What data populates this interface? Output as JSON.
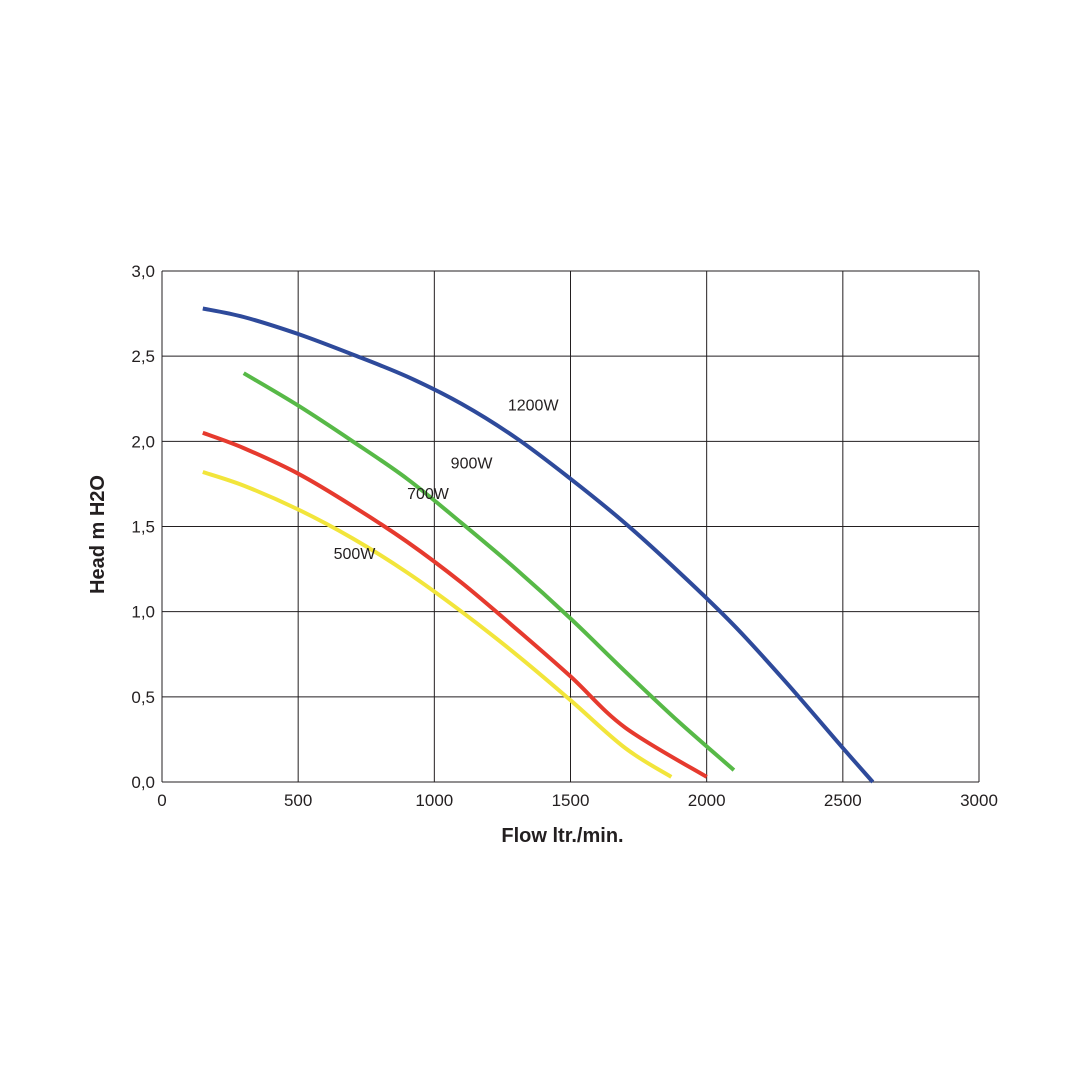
{
  "chart_data": {
    "type": "line",
    "xlabel": "Flow ltr./min.",
    "ylabel": "Head m H2O",
    "xlim": [
      0,
      3000
    ],
    "ylim": [
      0,
      3
    ],
    "x_ticks": [
      "0",
      "500",
      "1000",
      "1500",
      "2000",
      "2500",
      "3000"
    ],
    "y_ticks": [
      "0,0",
      "0,5",
      "1,0",
      "1,5",
      "2,0",
      "2,5",
      "3,0"
    ],
    "grid": true,
    "series": [
      {
        "name": "1200W",
        "color": "#2e4a9b",
        "x": [
          150,
          300,
          500,
          700,
          900,
          1100,
          1300,
          1500,
          1700,
          1900,
          2100,
          2300,
          2500,
          2610
        ],
        "y": [
          2.78,
          2.73,
          2.63,
          2.51,
          2.38,
          2.22,
          2.02,
          1.78,
          1.52,
          1.23,
          0.92,
          0.57,
          0.2,
          0.0
        ]
      },
      {
        "name": "900W",
        "color": "#57b947",
        "x": [
          300,
          500,
          700,
          900,
          1100,
          1300,
          1500,
          1700,
          1900,
          2100
        ],
        "y": [
          2.4,
          2.21,
          2.0,
          1.78,
          1.52,
          1.25,
          0.96,
          0.65,
          0.35,
          0.07
        ]
      },
      {
        "name": "700W",
        "color": "#e63a2e",
        "x": [
          150,
          300,
          500,
          700,
          900,
          1100,
          1300,
          1500,
          1700,
          2000
        ],
        "y": [
          2.05,
          1.96,
          1.81,
          1.62,
          1.41,
          1.17,
          0.9,
          0.62,
          0.32,
          0.03
        ]
      },
      {
        "name": "500W",
        "color": "#f2e53b",
        "x": [
          150,
          300,
          500,
          700,
          900,
          1100,
          1300,
          1500,
          1700,
          1870
        ],
        "y": [
          1.82,
          1.74,
          1.6,
          1.43,
          1.23,
          1.0,
          0.75,
          0.48,
          0.2,
          0.03
        ]
      }
    ],
    "annotations": [
      {
        "text": "1200W",
        "x": 1270,
        "y": 2.18
      },
      {
        "text": "900W",
        "x": 1060,
        "y": 1.84
      },
      {
        "text": "700W",
        "x": 900,
        "y": 1.66
      },
      {
        "text": "500W",
        "x": 630,
        "y": 1.31
      }
    ]
  }
}
